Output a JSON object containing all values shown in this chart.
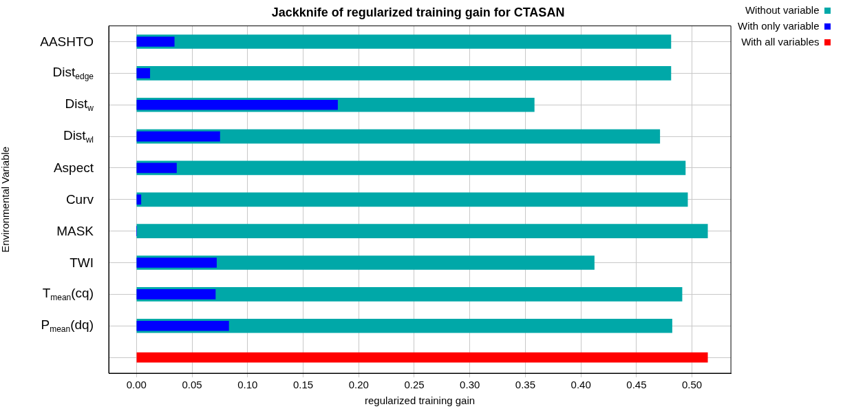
{
  "chart_data": {
    "type": "bar",
    "orientation": "horizontal",
    "title": "Jackknife of regularized training gain for CTASAN",
    "xlabel": "regularized training gain",
    "ylabel": "Environmental Variable",
    "categories": [
      "AASHTO",
      "Dist$_{edge}$",
      "Dist$_{w}$",
      "Dist$_{wl}$",
      "Aspect",
      "Curv",
      "MASK",
      "TWI",
      "T$_{mean}$(cq)",
      "P$_{mean}$(dq)",
      null
    ],
    "series": [
      {
        "name": "Without variable",
        "color": "#00a8a8",
        "values": [
          0.481,
          0.481,
          0.358,
          0.471,
          0.494,
          0.496,
          0.514,
          0.412,
          0.491,
          0.482,
          null
        ]
      },
      {
        "name": "With only variable",
        "color": "#0000ff",
        "values": [
          0.034,
          0.012,
          0.181,
          0.075,
          0.036,
          0.004,
          0,
          0.072,
          0.071,
          0.083,
          null
        ]
      },
      {
        "name": "With all variables",
        "color": "#ff0000",
        "values": [
          null,
          null,
          null,
          null,
          null,
          null,
          null,
          null,
          null,
          null,
          0.514
        ]
      }
    ],
    "xlim": [
      -0.025,
      0.535
    ],
    "xticks": [
      {
        "value": 0,
        "label": "0.00"
      },
      0.05,
      {
        "value": 0.1,
        "label": "0.10"
      },
      0.15,
      {
        "value": 0.2,
        "label": "0.20"
      },
      0.25,
      {
        "value": 0.3,
        "label": "0.30"
      },
      0.35,
      {
        "value": 0.4,
        "label": "0.40"
      },
      0.45,
      {
        "value": 0.5,
        "label": "0.50"
      }
    ],
    "grid": true,
    "legend": "top right"
  }
}
